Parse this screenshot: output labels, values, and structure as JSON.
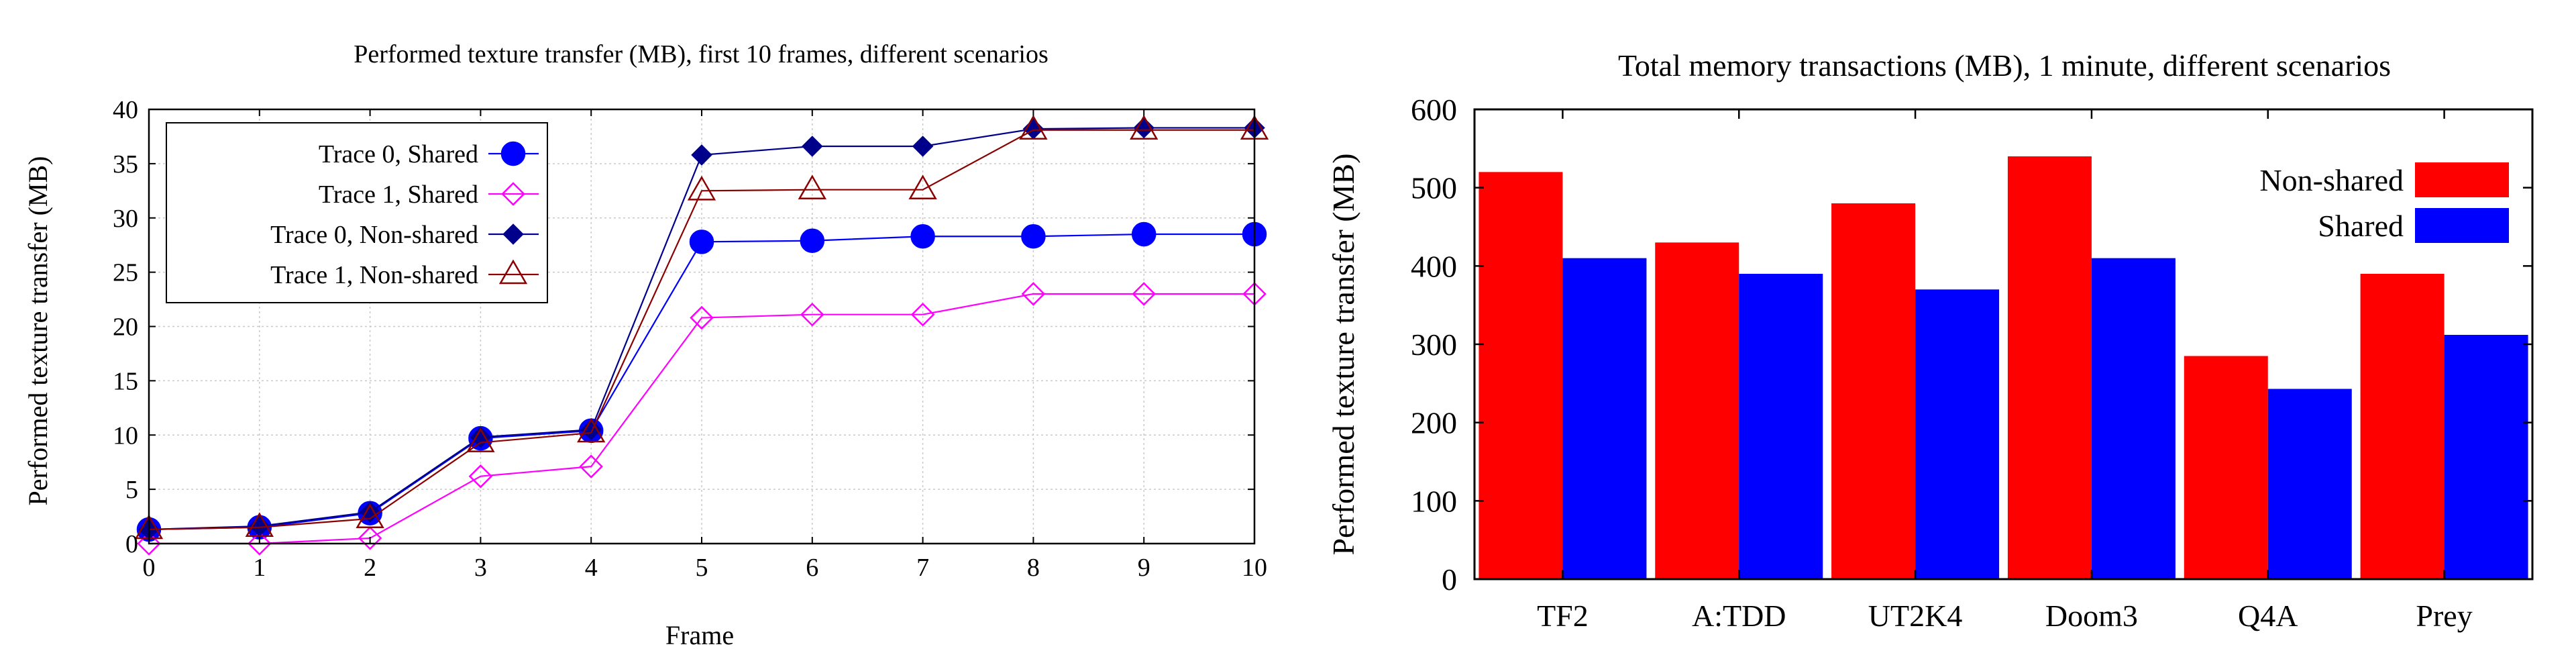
{
  "chart_data": [
    {
      "type": "line",
      "title": "Performed texture transfer (MB), first 10 frames, different scenarios",
      "xlabel": "Frame",
      "ylabel": "Performed texture transfer (MB)",
      "xlim": [
        0,
        10
      ],
      "ylim": [
        0,
        40
      ],
      "x_ticks": [
        "0",
        "1",
        "2",
        "3",
        "4",
        "5",
        "6",
        "7",
        "8",
        "9",
        "10"
      ],
      "y_ticks": [
        "0",
        "5",
        "10",
        "15",
        "20",
        "25",
        "30",
        "35",
        "40"
      ],
      "grid": true,
      "legend_position": "top-left",
      "x": [
        0,
        1,
        2,
        3,
        4,
        5,
        6,
        7,
        8,
        9,
        10
      ],
      "series": [
        {
          "name": "Trace 0, Shared",
          "color": "#0000ff",
          "marker": "circle-filled",
          "values": [
            1.3,
            1.5,
            2.8,
            9.7,
            10.4,
            27.8,
            27.9,
            28.3,
            28.3,
            28.5,
            28.5
          ]
        },
        {
          "name": "Trace 1, Shared",
          "color": "#ff00ff",
          "marker": "diamond-open",
          "values": [
            0,
            0,
            0.5,
            6.2,
            7.1,
            20.8,
            21.1,
            21.1,
            23.0,
            23.0,
            23.0
          ]
        },
        {
          "name": "Trace 0, Non-shared",
          "color": "#00008b",
          "marker": "diamond-filled",
          "values": [
            1.3,
            1.6,
            2.9,
            9.8,
            10.5,
            35.8,
            36.6,
            36.6,
            38.2,
            38.3,
            38.3
          ]
        },
        {
          "name": "Trace 1, Non-shared",
          "color": "#8b0000",
          "marker": "triangle-open",
          "values": [
            1.3,
            1.5,
            2.3,
            9.3,
            10.2,
            32.5,
            32.6,
            32.6,
            38.1,
            38.1,
            38.1
          ]
        }
      ]
    },
    {
      "type": "bar",
      "title": "Total memory transactions (MB), 1 minute, different scenarios",
      "xlabel": "",
      "ylabel": "Performed texture transfer (MB)",
      "ylim": [
        0,
        600
      ],
      "y_ticks": [
        "0",
        "100",
        "200",
        "300",
        "400",
        "500",
        "600"
      ],
      "grid": false,
      "legend_position": "top-right",
      "categories": [
        "TF2",
        "A:TDD",
        "UT2K4",
        "Doom3",
        "Q4A",
        "Prey"
      ],
      "series": [
        {
          "name": "Non-shared",
          "color": "#ff0000",
          "values": [
            520,
            430,
            480,
            540,
            285,
            390
          ]
        },
        {
          "name": "Shared",
          "color": "#0000ff",
          "values": [
            410,
            390,
            370,
            410,
            243,
            312
          ]
        }
      ]
    }
  ]
}
